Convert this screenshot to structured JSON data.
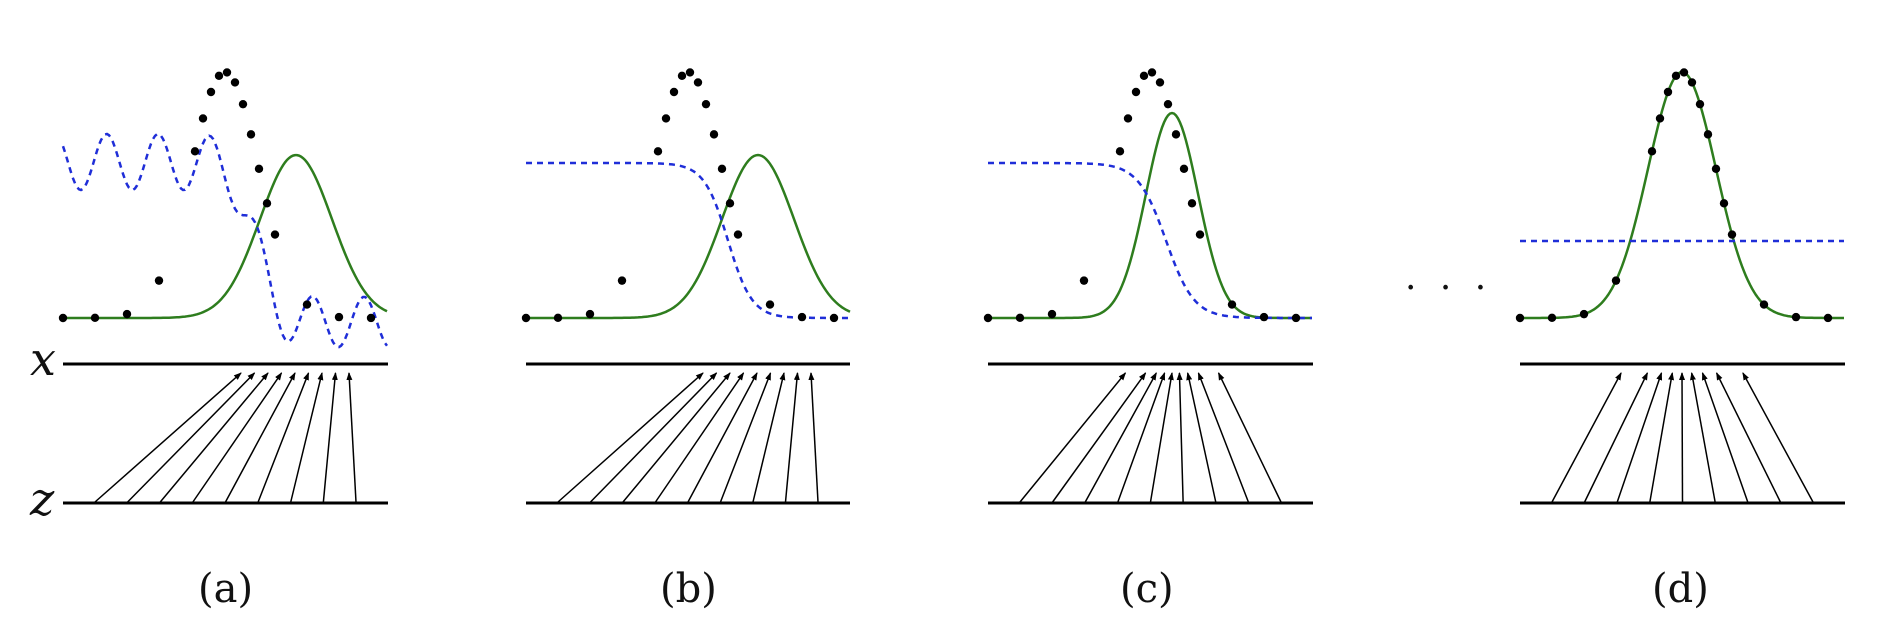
{
  "axis_labels": {
    "x": "x",
    "z": "z"
  },
  "ellipsis": "· · ·",
  "colors": {
    "data_dots": "#000000",
    "model_curve": "#2e7d1e",
    "discriminator": "#1f2ed8",
    "axis": "#000000"
  },
  "panels": [
    {
      "caption": "(a)"
    },
    {
      "caption": "(b)"
    },
    {
      "caption": "(c)"
    },
    {
      "caption": "(d)"
    }
  ]
}
